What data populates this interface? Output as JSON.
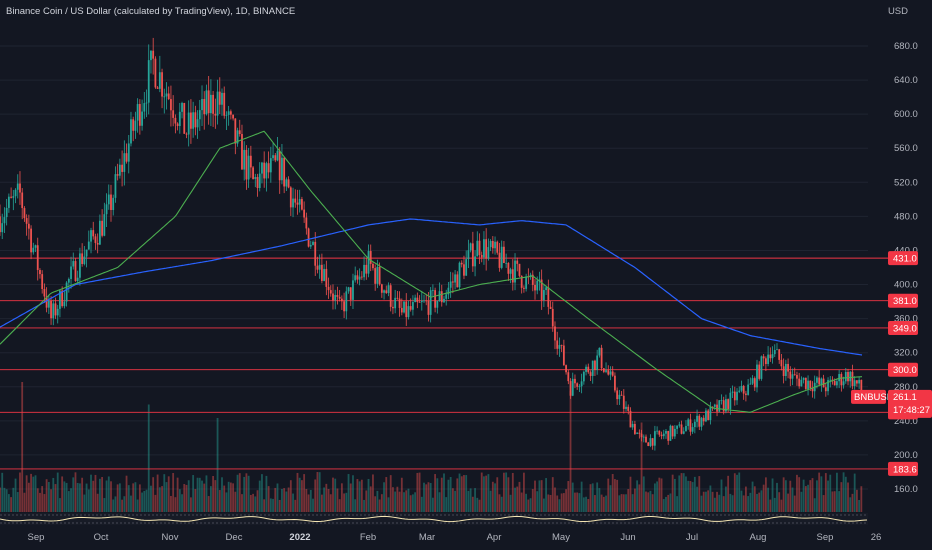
{
  "header": {
    "title": "Binance Coin / US Dollar (calculated by TradingView), 1D, BINANCE",
    "currency": "USD"
  },
  "colors": {
    "background": "#131722",
    "grid": "#1f2431",
    "up": "#26a69a",
    "down": "#ef5350",
    "ma_short": "#4caf50",
    "ma_long": "#2962ff",
    "level_line": "#f23645",
    "axis_text": "#b2b5be"
  },
  "price_axis": {
    "ticks": [
      "680.0",
      "640.0",
      "600.0",
      "560.0",
      "520.0",
      "480.0",
      "440.0",
      "400.0",
      "360.0",
      "320.0",
      "280.0",
      "240.0",
      "200.0",
      "160.0"
    ]
  },
  "levels": [
    {
      "price": 431,
      "label": "431.0"
    },
    {
      "price": 381,
      "label": "381.0"
    },
    {
      "price": 349,
      "label": "349.0"
    },
    {
      "price": 300,
      "label": "300.0"
    },
    {
      "price": 250,
      "label": "250.0"
    },
    {
      "price": 183.6,
      "label": "183.6"
    }
  ],
  "current": {
    "symbol": "BNBUSD",
    "price": "261.1",
    "countdown": "17:48:27"
  },
  "time_axis": {
    "labels": [
      {
        "text": "Sep",
        "bold": false
      },
      {
        "text": "Oct",
        "bold": false
      },
      {
        "text": "Nov",
        "bold": false
      },
      {
        "text": "Dec",
        "bold": false
      },
      {
        "text": "2022",
        "bold": true
      },
      {
        "text": "Feb",
        "bold": false
      },
      {
        "text": "Mar",
        "bold": false
      },
      {
        "text": "Apr",
        "bold": false
      },
      {
        "text": "May",
        "bold": false
      },
      {
        "text": "Jun",
        "bold": false
      },
      {
        "text": "Jul",
        "bold": false
      },
      {
        "text": "Aug",
        "bold": false
      },
      {
        "text": "Sep",
        "bold": false
      },
      {
        "text": "26",
        "bold": false
      }
    ]
  },
  "chart_data": {
    "type": "candlestick",
    "y_range": [
      150,
      700
    ],
    "anchor_prices": [
      [
        "2021-08-28",
        480
      ],
      [
        "2021-09-06",
        505
      ],
      [
        "2021-09-20",
        360
      ],
      [
        "2021-10-01",
        420
      ],
      [
        "2021-10-15",
        480
      ],
      [
        "2021-11-05",
        660
      ],
      [
        "2021-11-20",
        580
      ],
      [
        "2021-12-04",
        620
      ],
      [
        "2021-12-20",
        520
      ],
      [
        "2022-01-01",
        540
      ],
      [
        "2022-01-20",
        420
      ],
      [
        "2022-01-28",
        370
      ],
      [
        "2022-02-10",
        425
      ],
      [
        "2022-02-25",
        365
      ],
      [
        "2022-03-15",
        385
      ],
      [
        "2022-04-01",
        448
      ],
      [
        "2022-04-15",
        420
      ],
      [
        "2022-05-01",
        385
      ],
      [
        "2022-05-12",
        280
      ],
      [
        "2022-05-25",
        315
      ],
      [
        "2022-06-13",
        215
      ],
      [
        "2022-07-01",
        230
      ],
      [
        "2022-07-15",
        250
      ],
      [
        "2022-08-01",
        280
      ],
      [
        "2022-08-10",
        325
      ],
      [
        "2022-08-20",
        290
      ],
      [
        "2022-09-05",
        280
      ],
      [
        "2022-09-14",
        295
      ],
      [
        "2022-09-21",
        273
      ]
    ],
    "ma_short_anchors": [
      [
        "2021-08-28",
        330
      ],
      [
        "2021-09-20",
        390
      ],
      [
        "2021-10-20",
        420
      ],
      [
        "2021-11-15",
        480
      ],
      [
        "2021-12-05",
        560
      ],
      [
        "2021-12-25",
        580
      ],
      [
        "2022-01-15",
        510
      ],
      [
        "2022-02-10",
        430
      ],
      [
        "2022-03-10",
        385
      ],
      [
        "2022-04-01",
        400
      ],
      [
        "2022-04-25",
        410
      ],
      [
        "2022-05-20",
        360
      ],
      [
        "2022-06-20",
        300
      ],
      [
        "2022-07-15",
        255
      ],
      [
        "2022-08-01",
        250
      ],
      [
        "2022-08-20",
        270
      ],
      [
        "2022-09-10",
        290
      ],
      [
        "2022-09-21",
        292
      ]
    ],
    "ma_long_anchors": [
      [
        "2021-08-28",
        350
      ],
      [
        "2021-10-01",
        400
      ],
      [
        "2021-11-01",
        415
      ],
      [
        "2021-12-01",
        428
      ],
      [
        "2022-01-01",
        445
      ],
      [
        "2022-02-10",
        470
      ],
      [
        "2022-03-01",
        477
      ],
      [
        "2022-04-01",
        470
      ],
      [
        "2022-04-20",
        475
      ],
      [
        "2022-05-10",
        470
      ],
      [
        "2022-06-10",
        420
      ],
      [
        "2022-07-10",
        360
      ],
      [
        "2022-08-01",
        340
      ],
      [
        "2022-09-01",
        325
      ],
      [
        "2022-09-21",
        317
      ]
    ],
    "volume_spikes": [
      [
        "2021-09-07",
        1.0
      ],
      [
        "2021-11-03",
        0.75
      ],
      [
        "2021-12-04",
        0.6
      ],
      [
        "2022-05-12",
        0.9
      ],
      [
        "2022-06-13",
        0.55
      ]
    ]
  }
}
